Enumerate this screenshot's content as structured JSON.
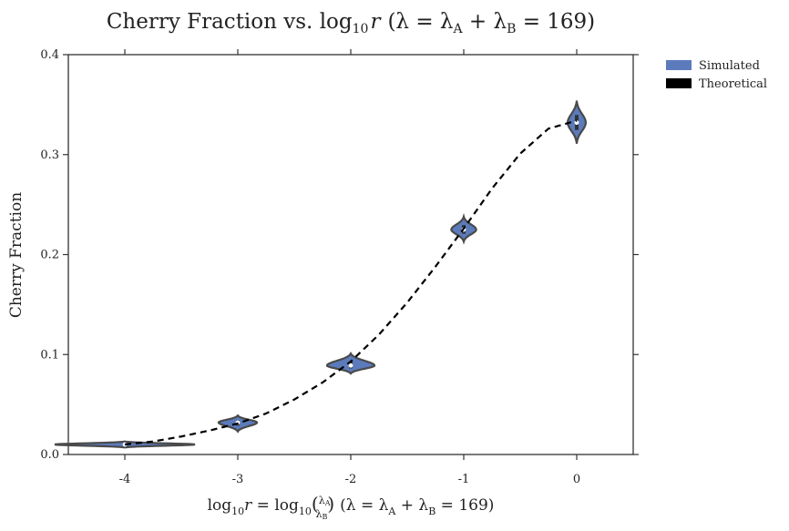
{
  "chart_data": {
    "type": "violin",
    "title": "Cherry Fraction vs. log₁₀r (λ = λ_A + λ_B = 169)",
    "title_parts": {
      "prefix": "Cherry Fraction vs. ",
      "log": "log",
      "sub10": "10",
      "r": "r",
      "lambda_expr": "(λ = λ",
      "subA": "A",
      "plus": " + λ",
      "subB": "B",
      "value": " = 169)"
    },
    "xlabel": "log₁₀r = log₁₀(λ_A/λ_B) (λ = λ_A + λ_B = 169)",
    "xlabel_parts": {
      "log": "log",
      "sub10": "10",
      "r": "r",
      "eq": " = ",
      "lamA": "λ",
      "subA": "A",
      "lamB": "λ",
      "subB": "B",
      "paren": "(λ = λ",
      "plus": " + λ",
      "value": " = 169)"
    },
    "ylabel": "Cherry Fraction",
    "categories": [
      "-4",
      "-3",
      "-2",
      "-1",
      "0"
    ],
    "x_values": [
      -4,
      -3,
      -2,
      -1,
      0
    ],
    "xlim": [
      -4.5,
      0.5
    ],
    "ylim": [
      0.0,
      0.4
    ],
    "yticks": [
      0.0,
      0.1,
      0.2,
      0.3,
      0.4
    ],
    "ytick_labels": [
      "0.0",
      "0.1",
      "0.2",
      "0.3",
      "0.4"
    ],
    "legend_position": "outside-top-right",
    "series": [
      {
        "name": "Simulated",
        "color": "#5b7bbd",
        "violins": [
          {
            "x": -4,
            "median": 0.01,
            "min": 0.007,
            "max": 0.013,
            "halfwidth": 0.62
          },
          {
            "x": -3,
            "median": 0.032,
            "min": 0.023,
            "max": 0.039,
            "halfwidth": 0.17
          },
          {
            "x": -2,
            "median": 0.089,
            "min": 0.081,
            "max": 0.101,
            "halfwidth": 0.21
          },
          {
            "x": -1,
            "median": 0.225,
            "min": 0.213,
            "max": 0.238,
            "halfwidth": 0.11
          },
          {
            "x": 0,
            "median": 0.332,
            "min": 0.311,
            "max": 0.354,
            "halfwidth": 0.08
          }
        ]
      },
      {
        "name": "Theoretical",
        "color": "#000000",
        "x": [
          -4.0,
          -3.75,
          -3.5,
          -3.25,
          -3.0,
          -2.75,
          -2.5,
          -2.25,
          -2.0,
          -1.75,
          -1.5,
          -1.25,
          -1.0,
          -0.75,
          -0.5,
          -0.25,
          0.0
        ],
        "y": [
          0.01,
          0.013,
          0.018,
          0.024,
          0.031,
          0.041,
          0.055,
          0.072,
          0.093,
          0.12,
          0.152,
          0.188,
          0.226,
          0.266,
          0.301,
          0.326,
          0.334
        ]
      }
    ],
    "grid": false
  }
}
